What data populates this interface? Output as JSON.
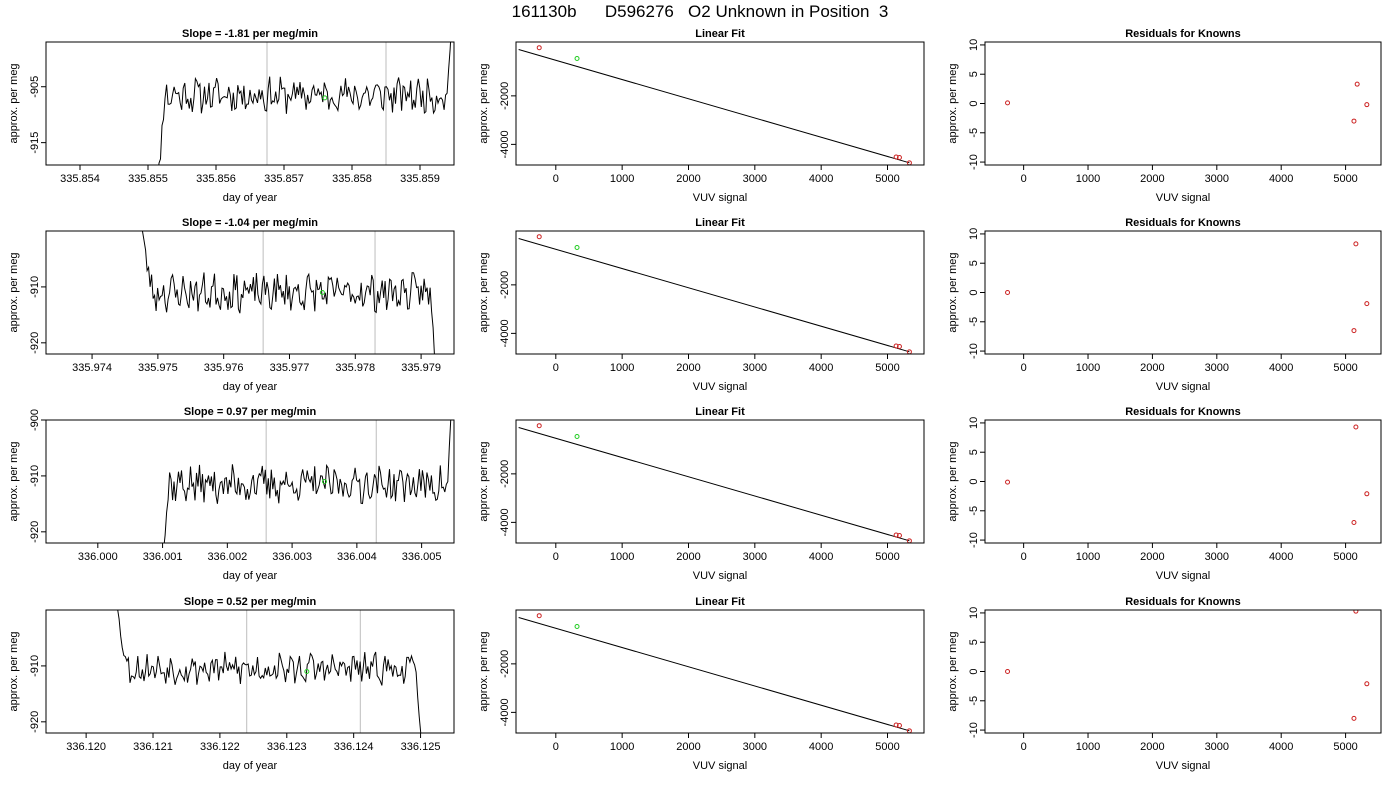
{
  "page": {
    "title": "161130b      D596276   O2 Unknown in Position  3"
  },
  "colors": {
    "line": "#000000",
    "known_marker": "#cc2222",
    "unknown_marker": "#22cc22",
    "vline": "#c8c8c8"
  },
  "chart_data": [
    {
      "type": "line",
      "row": 1,
      "title": "Slope =  -1.81  per meg/min",
      "xlabel": "day of year",
      "ylabel": "approx. per meg",
      "xlim": [
        335.8535,
        335.8595
      ],
      "ylim": [
        -919,
        -897
      ],
      "xticks": [
        335.854,
        335.855,
        335.856,
        335.857,
        335.858,
        335.859
      ],
      "xtick_labels": [
        "335.854",
        "335.855",
        "335.856",
        "335.857",
        "335.858",
        "335.859"
      ],
      "yticks": [
        -905,
        -915
      ],
      "ytick_labels": [
        "-905",
        "-915"
      ],
      "vlines": [
        335.85675,
        335.8585
      ],
      "unknown_point": [
        335.8576,
        -907
      ],
      "trace": {
        "x_start": 335.85505,
        "x_end": 335.85951,
        "level": -906.5,
        "start_value": -935,
        "end_value": -885,
        "amplitude": 2.6,
        "seed": 11
      }
    },
    {
      "type": "scatter",
      "row": 1,
      "title": "Linear Fit",
      "xlabel": "VUV signal",
      "ylabel": "approx. per meg",
      "xlim": [
        -600,
        5550
      ],
      "ylim": [
        -4850,
        220
      ],
      "xticks": [
        0,
        1000,
        2000,
        3000,
        4000,
        5000
      ],
      "xtick_labels": [
        "0",
        "1000",
        "2000",
        "3000",
        "4000",
        "5000"
      ],
      "yticks": [
        -2000,
        -4000
      ],
      "ytick_labels": [
        "-2000",
        "-4000"
      ],
      "fit_line": {
        "x": [
          -560,
          5330
        ],
        "y": [
          -90,
          -4760
        ]
      },
      "known_points": {
        "x": [
          -250,
          5130,
          5180,
          5330
        ],
        "y": [
          -15,
          -4520,
          -4540,
          -4760
        ]
      },
      "unknown_points": {
        "x": [
          320
        ],
        "y": [
          -460
        ]
      }
    },
    {
      "type": "scatter",
      "row": 1,
      "title": "Residuals for Knowns",
      "xlabel": "VUV signal",
      "ylabel": "approx. per meg",
      "xlim": [
        -600,
        5550
      ],
      "ylim": [
        -10.5,
        10.5
      ],
      "xticks": [
        0,
        1000,
        2000,
        3000,
        4000,
        5000
      ],
      "xtick_labels": [
        "0",
        "1000",
        "2000",
        "3000",
        "4000",
        "5000"
      ],
      "yticks": [
        10,
        5,
        0,
        -5,
        -10
      ],
      "ytick_labels": [
        "10",
        "5",
        "0",
        "-5",
        "-10"
      ],
      "known_points": {
        "x": [
          -250,
          5130,
          5180,
          5330
        ],
        "y": [
          0.1,
          -3.0,
          3.3,
          -0.2
        ]
      }
    },
    {
      "type": "line",
      "row": 2,
      "title": "Slope =  -1.04  per meg/min",
      "xlabel": "day of year",
      "ylabel": "approx. per meg",
      "xlim": [
        335.9733,
        335.9795
      ],
      "ylim": [
        -922,
        -900
      ],
      "xticks": [
        335.974,
        335.975,
        335.976,
        335.977,
        335.978,
        335.979
      ],
      "xtick_labels": [
        "335.974",
        "335.975",
        "335.976",
        "335.977",
        "335.978",
        "335.979"
      ],
      "yticks": [
        -910,
        -920
      ],
      "ytick_labels": [
        "-910",
        "-920"
      ],
      "vlines": [
        335.9766,
        335.9783
      ],
      "unknown_point": [
        335.9775,
        -911
      ],
      "trace": {
        "x_start": 335.9747,
        "x_end": 335.97925,
        "level": -911,
        "start_value": -895,
        "end_value": -930,
        "amplitude": 2.8,
        "seed": 23
      }
    },
    {
      "type": "scatter",
      "row": 2,
      "title": "Linear Fit",
      "xlabel": "VUV signal",
      "ylabel": "approx. per meg",
      "xlim": [
        -600,
        5550
      ],
      "ylim": [
        -4850,
        220
      ],
      "xticks": [
        0,
        1000,
        2000,
        3000,
        4000,
        5000
      ],
      "xtick_labels": [
        "0",
        "1000",
        "2000",
        "3000",
        "4000",
        "5000"
      ],
      "yticks": [
        -2000,
        -4000
      ],
      "ytick_labels": [
        "-2000",
        "-4000"
      ],
      "fit_line": {
        "x": [
          -560,
          5330
        ],
        "y": [
          -90,
          -4760
        ]
      },
      "known_points": {
        "x": [
          -250,
          5130,
          5180,
          5330
        ],
        "y": [
          -15,
          -4520,
          -4540,
          -4760
        ]
      },
      "unknown_points": {
        "x": [
          320
        ],
        "y": [
          -460
        ]
      }
    },
    {
      "type": "scatter",
      "row": 2,
      "title": "Residuals for Knowns",
      "xlabel": "VUV signal",
      "ylabel": "approx. per meg",
      "xlim": [
        -600,
        5550
      ],
      "ylim": [
        -10.5,
        10.5
      ],
      "xticks": [
        0,
        1000,
        2000,
        3000,
        4000,
        5000
      ],
      "xtick_labels": [
        "0",
        "1000",
        "2000",
        "3000",
        "4000",
        "5000"
      ],
      "yticks": [
        10,
        5,
        0,
        -5,
        -10
      ],
      "ytick_labels": [
        "10",
        "5",
        "0",
        "-5",
        "-10"
      ],
      "known_points": {
        "x": [
          -250,
          5130,
          5160,
          5330
        ],
        "y": [
          0.0,
          -6.5,
          8.3,
          -1.9
        ]
      }
    },
    {
      "type": "line",
      "row": 3,
      "title": "Slope =  0.97  per meg/min",
      "xlabel": "day of year",
      "ylabel": "approx. per meg",
      "xlim": [
        335.9992,
        336.0055
      ],
      "ylim": [
        -922,
        -900
      ],
      "xticks": [
        336.0,
        336.001,
        336.002,
        336.003,
        336.004,
        336.005
      ],
      "xtick_labels": [
        "336.000",
        "336.001",
        "336.002",
        "336.003",
        "336.004",
        "336.005"
      ],
      "yticks": [
        -900,
        -910,
        -920
      ],
      "ytick_labels": [
        "-900",
        "-910",
        "-920"
      ],
      "vlines": [
        336.0026,
        336.0043
      ],
      "unknown_point": [
        336.0035,
        -911
      ],
      "trace": {
        "x_start": 336.0009,
        "x_end": 336.00552,
        "level": -911.5,
        "start_value": -935,
        "end_value": -885,
        "amplitude": 2.8,
        "seed": 37
      }
    },
    {
      "type": "scatter",
      "row": 3,
      "title": "Linear Fit",
      "xlabel": "VUV signal",
      "ylabel": "approx. per meg",
      "xlim": [
        -600,
        5550
      ],
      "ylim": [
        -4850,
        220
      ],
      "xticks": [
        0,
        1000,
        2000,
        3000,
        4000,
        5000
      ],
      "xtick_labels": [
        "0",
        "1000",
        "2000",
        "3000",
        "4000",
        "5000"
      ],
      "yticks": [
        -2000,
        -4000
      ],
      "ytick_labels": [
        "-2000",
        "-4000"
      ],
      "fit_line": {
        "x": [
          -560,
          5330
        ],
        "y": [
          -90,
          -4760
        ]
      },
      "known_points": {
        "x": [
          -250,
          5130,
          5180,
          5330
        ],
        "y": [
          -15,
          -4520,
          -4540,
          -4760
        ]
      },
      "unknown_points": {
        "x": [
          320
        ],
        "y": [
          -460
        ]
      }
    },
    {
      "type": "scatter",
      "row": 3,
      "title": "Residuals for Knowns",
      "xlabel": "VUV signal",
      "ylabel": "approx. per meg",
      "xlim": [
        -600,
        5550
      ],
      "ylim": [
        -10.5,
        10.5
      ],
      "xticks": [
        0,
        1000,
        2000,
        3000,
        4000,
        5000
      ],
      "xtick_labels": [
        "0",
        "1000",
        "2000",
        "3000",
        "4000",
        "5000"
      ],
      "yticks": [
        10,
        5,
        0,
        -5,
        -10
      ],
      "ytick_labels": [
        "10",
        "5",
        "0",
        "-5",
        "-10"
      ],
      "known_points": {
        "x": [
          -250,
          5130,
          5160,
          5330
        ],
        "y": [
          -0.1,
          -7.0,
          9.3,
          -2.1
        ]
      }
    },
    {
      "type": "line",
      "row": 4,
      "title": "Slope =  0.52  per meg/min",
      "xlabel": "day of year",
      "ylabel": "approx. per meg",
      "xlim": [
        336.1194,
        336.1255
      ],
      "ylim": [
        -922,
        -900
      ],
      "xticks": [
        336.12,
        336.121,
        336.122,
        336.123,
        336.124,
        336.125
      ],
      "xtick_labels": [
        "336.120",
        "336.121",
        "336.122",
        "336.123",
        "336.124",
        "336.125"
      ],
      "yticks": [
        -910,
        -920
      ],
      "ytick_labels": [
        "-910",
        "-920"
      ],
      "vlines": [
        336.1224,
        336.1241
      ],
      "unknown_point": [
        336.1233,
        -911
      ],
      "trace": {
        "x_start": 336.1204,
        "x_end": 336.12505,
        "level": -910.5,
        "start_value": -895,
        "end_value": -930,
        "amplitude": 2.3,
        "seed": 53
      }
    },
    {
      "type": "scatter",
      "row": 4,
      "title": "Linear Fit",
      "xlabel": "VUV signal",
      "ylabel": "approx. per meg",
      "xlim": [
        -600,
        5550
      ],
      "ylim": [
        -4850,
        220
      ],
      "xticks": [
        0,
        1000,
        2000,
        3000,
        4000,
        5000
      ],
      "xtick_labels": [
        "0",
        "1000",
        "2000",
        "3000",
        "4000",
        "5000"
      ],
      "yticks": [
        -2000,
        -4000
      ],
      "ytick_labels": [
        "-2000",
        "-4000"
      ],
      "fit_line": {
        "x": [
          -560,
          5330
        ],
        "y": [
          -90,
          -4760
        ]
      },
      "known_points": {
        "x": [
          -250,
          5130,
          5180,
          5330
        ],
        "y": [
          -15,
          -4520,
          -4540,
          -4760
        ]
      },
      "unknown_points": {
        "x": [
          320
        ],
        "y": [
          -460
        ]
      }
    },
    {
      "type": "scatter",
      "row": 4,
      "title": "Residuals for Knowns",
      "xlabel": "VUV signal",
      "ylabel": "approx. per meg",
      "xlim": [
        -600,
        5550
      ],
      "ylim": [
        -10.5,
        10.5
      ],
      "xticks": [
        0,
        1000,
        2000,
        3000,
        4000,
        5000
      ],
      "xtick_labels": [
        "0",
        "1000",
        "2000",
        "3000",
        "4000",
        "5000"
      ],
      "yticks": [
        10,
        5,
        0,
        -5,
        -10
      ],
      "ytick_labels": [
        "10",
        "5",
        "0",
        "-5",
        "-10"
      ],
      "known_points": {
        "x": [
          -250,
          5130,
          5160,
          5330
        ],
        "y": [
          0.0,
          -8.0,
          10.3,
          -2.1
        ]
      }
    }
  ]
}
